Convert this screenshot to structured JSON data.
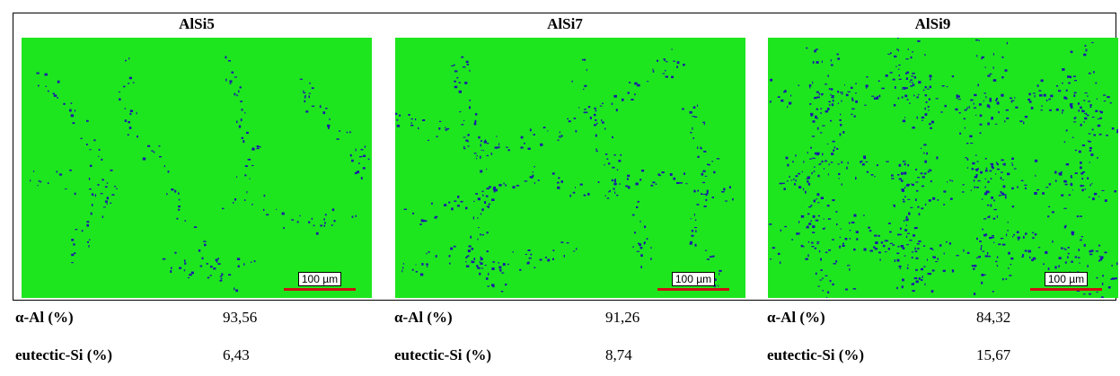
{
  "columns": [
    {
      "title": "AlSi5",
      "alpha_label": "α-Al (%)",
      "alpha_value": "93,56",
      "eut_label": "eutectic-Si (%)",
      "eut_value": "6,43",
      "scale_label": "100 µm"
    },
    {
      "title": "AlSi7",
      "alpha_label": "α-Al (%)",
      "alpha_value": "91,26",
      "eut_label": "eutectic-Si (%)",
      "eut_value": "8,74",
      "scale_label": "100 µm"
    },
    {
      "title": "AlSi9",
      "alpha_label": "α-Al (%)",
      "alpha_value": "84,32",
      "eut_label": "eutectic-Si (%)",
      "eut_value": "15,67",
      "scale_label": "100 µm"
    }
  ],
  "colors": {
    "alpha_phase": "#1ee61e",
    "silicon_phase": "#1a1aa8",
    "scale_bar": "#cc1010"
  }
}
